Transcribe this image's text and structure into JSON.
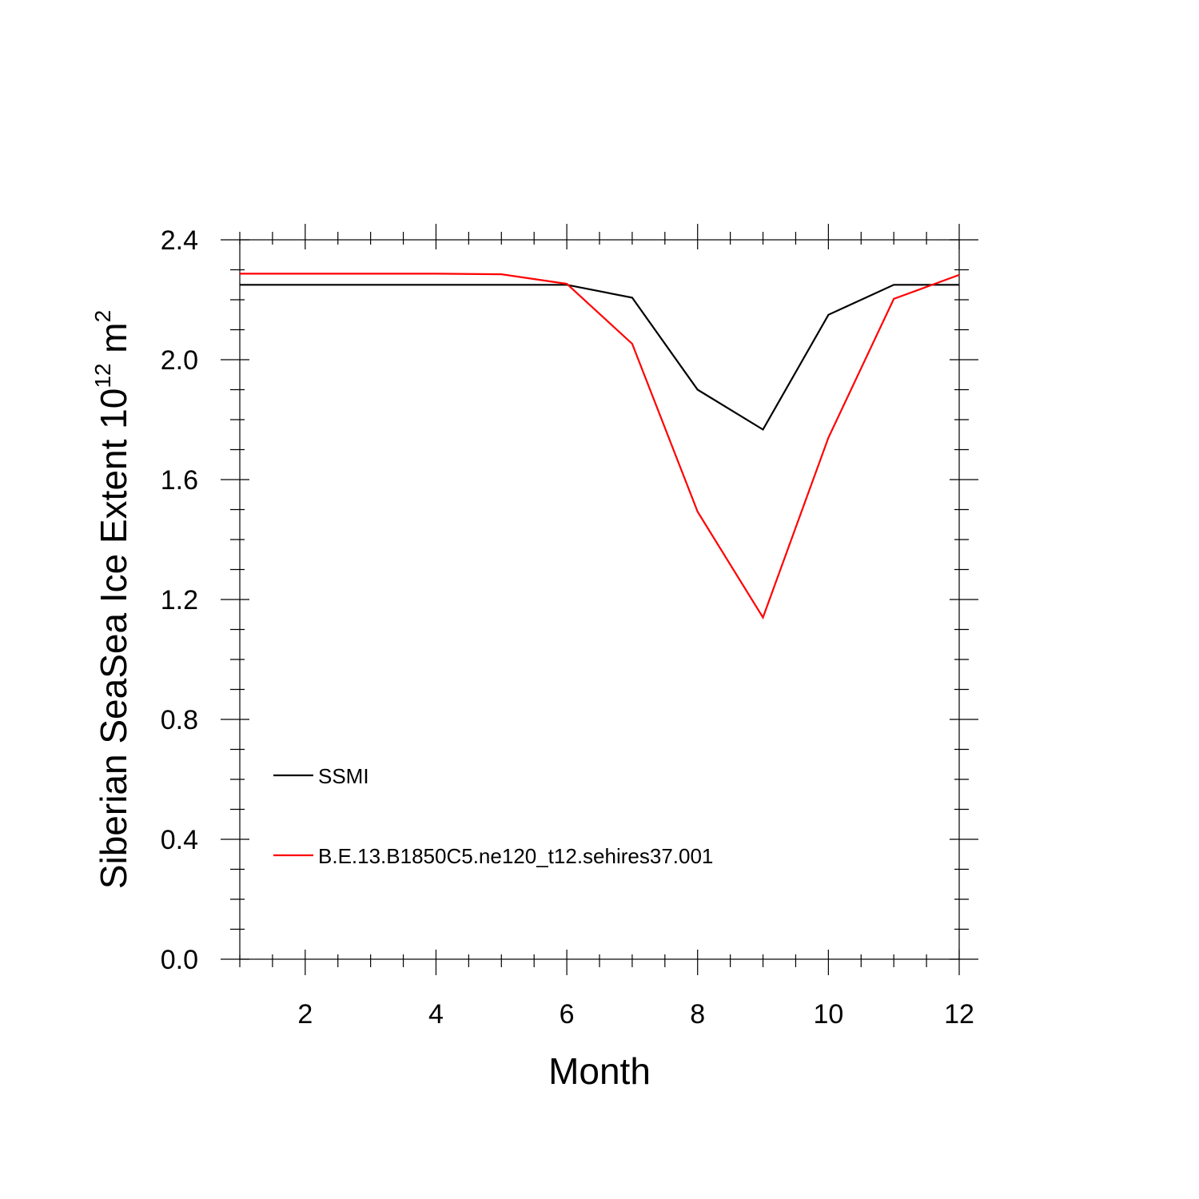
{
  "chart_data": {
    "type": "line",
    "xlabel": "Month",
    "ylabel": {
      "text": "Siberian SeaSea Ice Extent 10",
      "superscript": "12",
      "unit": " m",
      "unit_superscript": "2"
    },
    "xlim": [
      1,
      12
    ],
    "ylim": [
      0,
      2.4
    ],
    "x_ticks": [
      2,
      4,
      6,
      8,
      10,
      12
    ],
    "x_tick_labels": [
      "2",
      "4",
      "6",
      "8",
      "10",
      "12"
    ],
    "y_ticks": [
      0,
      0.4,
      0.8,
      1.2,
      1.6,
      2.0,
      2.4
    ],
    "y_tick_labels": [
      "0.0",
      "0.4",
      "0.8",
      "1.2",
      "1.6",
      "2.0",
      "2.4"
    ],
    "grid": false,
    "legend_position": "bottom-left",
    "x": [
      1,
      2,
      3,
      4,
      5,
      6,
      7,
      8,
      9,
      10,
      11,
      12
    ],
    "series": [
      {
        "name": "SSMI",
        "color": "#000000",
        "values": [
          2.25,
          2.25,
          2.25,
          2.25,
          2.25,
          2.25,
          2.207,
          1.9,
          1.767,
          2.15,
          2.25,
          2.25
        ]
      },
      {
        "name": "B.E.13.B1850C5.ne120_t12.sehires37.001",
        "color": "#ff0000",
        "values": [
          2.287,
          2.287,
          2.287,
          2.287,
          2.285,
          2.253,
          2.053,
          1.493,
          1.14,
          1.74,
          2.203,
          2.283
        ]
      }
    ]
  }
}
